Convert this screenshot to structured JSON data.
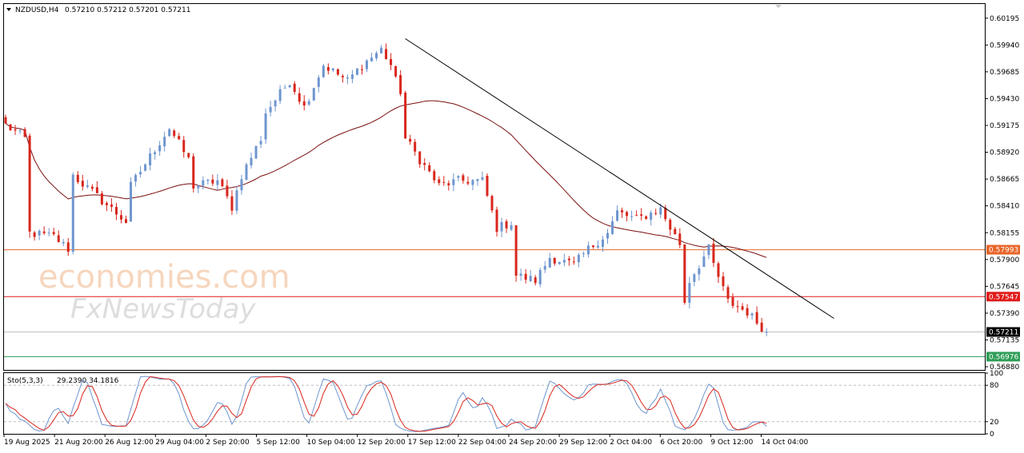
{
  "header": {
    "symbol": "NZDUSD,H4",
    "ohlc": "0.57210 0.57212 0.57201 0.57211"
  },
  "watermark": {
    "line1": "economies.com",
    "line2": "FxNewsToday"
  },
  "colors": {
    "bull": "#6f96cf",
    "bear": "#d8261c",
    "ma": "#7a0f0f",
    "resistance": "#e8662a",
    "support_red": "#e11b1b",
    "support_green": "#2e9d57",
    "current": "#000000",
    "stoch_main": "#6f96cf",
    "stoch_signal": "#d8261c"
  },
  "chart_data": [
    {
      "type": "candlestick",
      "symbol": "NZDUSD",
      "timeframe": "H4",
      "ylim": [
        0.5685,
        0.6033
      ],
      "y_ticks": [
        0.60195,
        0.5994,
        0.59685,
        0.5943,
        0.59175,
        0.5892,
        0.58665,
        0.5841,
        0.58155,
        0.579,
        0.57645,
        0.5739,
        0.57135,
        0.5688
      ],
      "y_tick_labels": [
        "0.60195",
        "0.59940",
        "0.59685",
        "0.59430",
        "0.59175",
        "0.58920",
        "0.58665",
        "0.58410",
        "0.58155",
        "0.57900",
        "0.57645",
        "0.57390",
        "0.57135",
        "0.56880"
      ],
      "x_tick_labels": [
        "19 Aug 2025",
        "21 Aug 20:00",
        "26 Aug 12:00",
        "29 Aug 04:00",
        "2 Sep 20:00",
        "5 Sep 12:00",
        "10 Sep 04:00",
        "12 Sep 20:00",
        "17 Sep 12:00",
        "22 Sep 04:00",
        "24 Sep 20:00",
        "29 Sep 12:00",
        "2 Oct 04:00",
        "6 Oct 20:00",
        "9 Oct 12:00",
        "14 Oct 04:00"
      ],
      "close_path": [
        [
          0,
          0.5918
        ],
        [
          4,
          0.5905
        ],
        [
          5,
          0.5815
        ],
        [
          10,
          0.5812
        ],
        [
          13,
          0.58
        ],
        [
          14,
          0.587
        ],
        [
          19,
          0.585
        ],
        [
          25,
          0.5826
        ],
        [
          26,
          0.586
        ],
        [
          31,
          0.5895
        ],
        [
          34,
          0.5915
        ],
        [
          38,
          0.5885
        ],
        [
          39,
          0.586
        ],
        [
          44,
          0.5865
        ],
        [
          47,
          0.584
        ],
        [
          49,
          0.587
        ],
        [
          53,
          0.5905
        ],
        [
          54,
          0.593
        ],
        [
          59,
          0.596
        ],
        [
          62,
          0.5935
        ],
        [
          66,
          0.5975
        ],
        [
          71,
          0.596
        ],
        [
          74,
          0.5975
        ],
        [
          78,
          0.599
        ],
        [
          80,
          0.5975
        ],
        [
          81,
          0.596
        ],
        [
          82,
          0.595
        ],
        [
          83,
          0.5905
        ],
        [
          86,
          0.5885
        ],
        [
          90,
          0.586
        ],
        [
          94,
          0.5865
        ],
        [
          99,
          0.5865
        ],
        [
          102,
          0.582
        ],
        [
          105,
          0.5825
        ],
        [
          106,
          0.5775
        ],
        [
          110,
          0.577
        ],
        [
          113,
          0.5792
        ],
        [
          118,
          0.5785
        ],
        [
          121,
          0.58
        ],
        [
          125,
          0.5815
        ],
        [
          127,
          0.5835
        ],
        [
          131,
          0.5828
        ],
        [
          136,
          0.5838
        ],
        [
          138,
          0.582
        ],
        [
          140,
          0.5805
        ],
        [
          141,
          0.575
        ],
        [
          142,
          0.577
        ],
        [
          146,
          0.58
        ],
        [
          147,
          0.5785
        ],
        [
          150,
          0.575
        ],
        [
          154,
          0.574
        ],
        [
          158,
          0.5721
        ]
      ],
      "current_price": "0.57211",
      "levels": [
        {
          "value": 0.57993,
          "label": "0.57993",
          "color": "resistance"
        },
        {
          "value": 0.57547,
          "label": "0.57547",
          "color": "support_red"
        },
        {
          "value": 0.56976,
          "label": "0.56976",
          "color": "support_green"
        }
      ],
      "trendline": {
        "start": [
          83,
          0.6
        ],
        "end": [
          172,
          0.5734
        ]
      },
      "moving_average": {
        "color": "ma"
      }
    },
    {
      "type": "line",
      "indicator": "Sto(5,3,3)",
      "label_values": "29.2390 34.1816",
      "ylim": [
        0,
        100
      ],
      "y_ticks": [
        100,
        80,
        20,
        0
      ],
      "y_tick_labels": [
        "100",
        "80",
        "20",
        "0"
      ],
      "levels": [
        80,
        20
      ],
      "series": [
        {
          "role": "main",
          "color": "stoch_main"
        },
        {
          "role": "signal",
          "color": "stoch_signal"
        }
      ]
    }
  ]
}
